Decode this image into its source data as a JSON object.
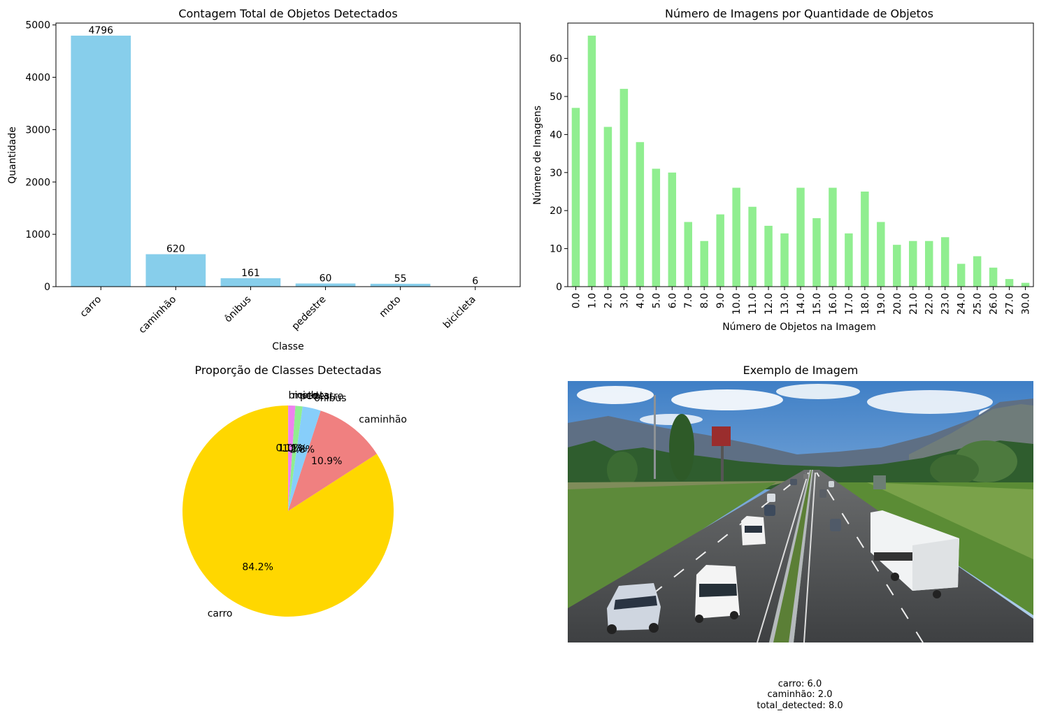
{
  "chart_data": [
    {
      "type": "bar",
      "title": "Contagem Total de Objetos Detectados",
      "xlabel": "Classe",
      "ylabel": "Quantidade",
      "categories": [
        "carro",
        "caminhão",
        "ônibus",
        "pedestre",
        "moto",
        "bicicleta"
      ],
      "values": [
        4796,
        620,
        161,
        60,
        55,
        6
      ],
      "data_labels": [
        "4796",
        "620",
        "161",
        "60",
        "55",
        "6"
      ],
      "ylim": [
        0,
        5036
      ],
      "yticks": [
        0,
        1000,
        2000,
        3000,
        4000,
        5000
      ],
      "ytick_labels": [
        "0",
        "1000",
        "2000",
        "3000",
        "4000",
        "5000"
      ],
      "color": "#87CEEB",
      "grid": false
    },
    {
      "type": "bar",
      "title": "Número de Imagens por Quantidade de Objetos",
      "xlabel": "Número de Objetos na Imagem",
      "ylabel": "Número de Imagens",
      "categories": [
        "0.0",
        "1.0",
        "2.0",
        "3.0",
        "4.0",
        "5.0",
        "6.0",
        "7.0",
        "8.0",
        "9.0",
        "10.0",
        "11.0",
        "12.0",
        "13.0",
        "14.0",
        "15.0",
        "16.0",
        "17.0",
        "18.0",
        "19.0",
        "20.0",
        "21.0",
        "22.0",
        "23.0",
        "24.0",
        "25.0",
        "26.0",
        "27.0",
        "30.0"
      ],
      "values": [
        47,
        66,
        42,
        52,
        38,
        31,
        30,
        17,
        12,
        19,
        26,
        21,
        16,
        14,
        26,
        18,
        26,
        14,
        25,
        17,
        11,
        12,
        12,
        13,
        6,
        8,
        5,
        2,
        1
      ],
      "ylim": [
        0,
        69.3
      ],
      "yticks": [
        0,
        10,
        20,
        30,
        40,
        50,
        60
      ],
      "ytick_labels": [
        "0",
        "10",
        "20",
        "30",
        "40",
        "50",
        "60"
      ],
      "color": "#90EE90",
      "grid": false
    },
    {
      "type": "pie",
      "title": "Proporção de Classes Detectadas",
      "labels": [
        "carro",
        "caminhão",
        "ônibus",
        "pedestre",
        "moto",
        "bicicleta"
      ],
      "values": [
        84.2,
        10.9,
        2.8,
        1.1,
        1.0,
        0.1
      ],
      "pct_labels": [
        "84.2%",
        "10.9%",
        "2.8%",
        "1.1%",
        "1.0%",
        "0.1%"
      ],
      "colors": [
        "#FFD700",
        "#F08080",
        "#87CEFA",
        "#90EE90",
        "#EE82EE",
        "#EE82EE"
      ],
      "start_angle": 90
    }
  ],
  "image_panel": {
    "title": "Exemplo de Imagem",
    "caption_lines": [
      "carro: 6.0",
      "caminhão: 2.0",
      "total_detected: 8.0"
    ]
  }
}
